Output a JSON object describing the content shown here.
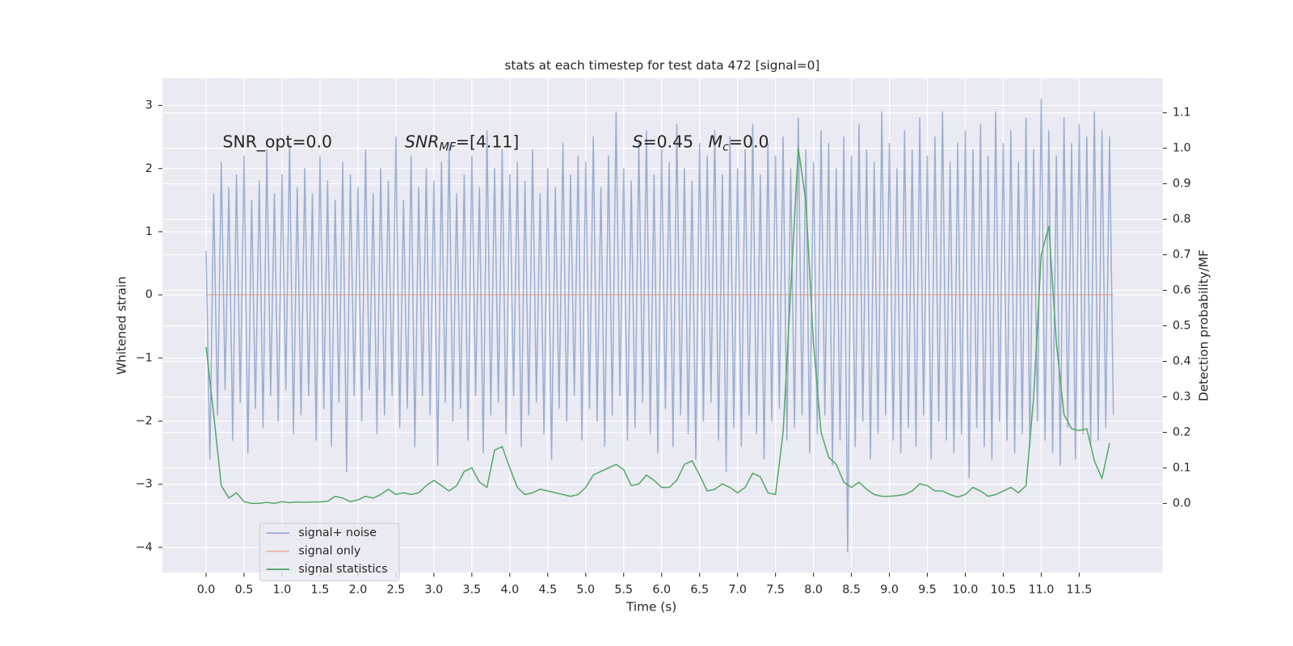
{
  "chart_data": {
    "type": "line",
    "title": "stats at each timestep for test data 472 [signal=0]",
    "xlabel": "Time (s)",
    "ylabel": "Whitened strain",
    "y2label": "Detection probability/MF",
    "annotations": [
      "SNR_opt=0.0",
      {
        "base": "SNR",
        "sub": "MF",
        "rest": "=[4.11]"
      },
      {
        "base": "S",
        "rest": "=0.45"
      },
      {
        "base": "M",
        "sub": "c",
        "rest": "=0.0"
      }
    ],
    "xlim": [
      -0.575,
      12.6
    ],
    "ylim": [
      -4.4,
      3.43
    ],
    "y2lim": [
      -0.195,
      1.197
    ],
    "xticks": [
      {
        "value": 0,
        "label": "0.0"
      },
      0.5,
      {
        "value": 1,
        "label": "1.0"
      },
      1.5,
      {
        "value": 2,
        "label": "2.0"
      },
      2.5,
      {
        "value": 3,
        "label": "3.0"
      },
      3.5,
      {
        "value": 4,
        "label": "4.0"
      },
      4.5,
      {
        "value": 5,
        "label": "5.0"
      },
      5.5,
      {
        "value": 6,
        "label": "6.0"
      },
      6.5,
      {
        "value": 7,
        "label": "7.0"
      },
      7.5,
      {
        "value": 8,
        "label": "8.0"
      },
      8.5,
      {
        "value": 9,
        "label": "9.0"
      },
      9.5,
      {
        "value": 10,
        "label": "10.0"
      },
      10.5,
      {
        "value": 11,
        "label": "11.0"
      },
      11.5
    ],
    "yticks": [
      {
        "value": -4,
        "label": "−4"
      },
      {
        "value": -3,
        "label": "−3"
      },
      {
        "value": -2,
        "label": "−2"
      },
      {
        "value": -1,
        "label": "−1"
      },
      0,
      1,
      2,
      3
    ],
    "y2ticks": [
      {
        "value": 0,
        "label": "0.0"
      },
      0.1,
      0.2,
      0.3,
      0.4,
      0.5,
      0.6,
      0.7,
      0.8,
      0.9,
      {
        "value": 1,
        "label": "1.0"
      },
      1.1
    ],
    "grid": true,
    "legend": "lower left",
    "series": [
      {
        "name": "signal+ noise",
        "color": "#4c72b0",
        "alpha": 0.5,
        "x": [
          0,
          0.05,
          0.1,
          0.15,
          0.2,
          0.25,
          0.3,
          0.35,
          0.4,
          0.45,
          0.5,
          0.55,
          0.6,
          0.65,
          0.7,
          0.75,
          0.8,
          0.85,
          0.9,
          0.95,
          1,
          1.05,
          1.1,
          1.15,
          1.2,
          1.25,
          1.3,
          1.35,
          1.4,
          1.45,
          1.5,
          1.55,
          1.6,
          1.65,
          1.7,
          1.75,
          1.8,
          1.85,
          1.9,
          1.95,
          2,
          2.05,
          2.1,
          2.15,
          2.2,
          2.25,
          2.3,
          2.35,
          2.4,
          2.45,
          2.5,
          2.55,
          2.6,
          2.65,
          2.7,
          2.75,
          2.8,
          2.85,
          2.9,
          2.95,
          3,
          3.05,
          3.1,
          3.15,
          3.2,
          3.25,
          3.3,
          3.35,
          3.4,
          3.45,
          3.5,
          3.55,
          3.6,
          3.65,
          3.7,
          3.75,
          3.8,
          3.85,
          3.9,
          3.95,
          4,
          4.05,
          4.1,
          4.15,
          4.2,
          4.25,
          4.3,
          4.35,
          4.4,
          4.45,
          4.5,
          4.55,
          4.6,
          4.65,
          4.7,
          4.75,
          4.8,
          4.85,
          4.9,
          4.95,
          5,
          5.05,
          5.1,
          5.15,
          5.2,
          5.25,
          5.3,
          5.35,
          5.4,
          5.45,
          5.5,
          5.55,
          5.6,
          5.65,
          5.7,
          5.75,
          5.8,
          5.85,
          5.9,
          5.95,
          6,
          6.05,
          6.1,
          6.15,
          6.2,
          6.25,
          6.3,
          6.35,
          6.4,
          6.45,
          6.5,
          6.55,
          6.6,
          6.65,
          6.7,
          6.75,
          6.8,
          6.85,
          6.9,
          6.95,
          7,
          7.05,
          7.1,
          7.15,
          7.2,
          7.25,
          7.3,
          7.35,
          7.4,
          7.45,
          7.5,
          7.55,
          7.6,
          7.65,
          7.7,
          7.75,
          7.8,
          7.85,
          7.9,
          7.95,
          8,
          8.05,
          8.1,
          8.15,
          8.2,
          8.25,
          8.3,
          8.35,
          8.4,
          8.45,
          8.5,
          8.55,
          8.6,
          8.65,
          8.7,
          8.75,
          8.8,
          8.85,
          8.9,
          8.95,
          9,
          9.05,
          9.1,
          9.15,
          9.2,
          9.25,
          9.3,
          9.35,
          9.4,
          9.45,
          9.5,
          9.55,
          9.6,
          9.65,
          9.7,
          9.75,
          9.8,
          9.85,
          9.9,
          9.95,
          10,
          10.05,
          10.1,
          10.15,
          10.2,
          10.25,
          10.3,
          10.35,
          10.4,
          10.45,
          10.5,
          10.55,
          10.6,
          10.65,
          10.7,
          10.75,
          10.8,
          10.85,
          10.9,
          10.95,
          11,
          11.05,
          11.1,
          11.15,
          11.2,
          11.25,
          11.3,
          11.35,
          11.4,
          11.45,
          11.5,
          11.55,
          11.6,
          11.65,
          11.7,
          11.75,
          11.8,
          11.85,
          11.9,
          11.95
        ],
        "values": [
          0.7,
          -2.6,
          1.6,
          -1.9,
          2.1,
          -1.5,
          1.7,
          -2.3,
          1.9,
          -1.7,
          2.2,
          -2.5,
          1.5,
          -1.8,
          1.8,
          -2.1,
          2.3,
          -1.6,
          1.6,
          -2.0,
          1.9,
          -1.5,
          2.4,
          -2.2,
          1.7,
          -1.9,
          2.0,
          -1.6,
          1.6,
          -2.3,
          2.2,
          -1.8,
          1.8,
          -2.4,
          1.5,
          -1.7,
          2.1,
          -2.8,
          1.9,
          -1.6,
          1.7,
          -2.0,
          2.3,
          -1.5,
          1.6,
          -2.2,
          2.0,
          -1.9,
          1.8,
          -1.6,
          2.5,
          -2.1,
          1.5,
          -1.8,
          2.2,
          -2.4,
          1.7,
          -1.6,
          2.0,
          -1.9,
          1.8,
          -2.7,
          2.1,
          -1.7,
          2.4,
          -2.0,
          1.6,
          -1.8,
          1.9,
          -2.3,
          2.2,
          -1.6,
          1.7,
          -2.5,
          2.6,
          -1.9,
          2.0,
          -1.7,
          2.3,
          -2.2,
          1.9,
          -1.6,
          2.1,
          -2.4,
          1.8,
          -1.9,
          2.3,
          -1.7,
          1.6,
          -2.2,
          2.0,
          -2.6,
          1.7,
          -1.8,
          2.4,
          -2.0,
          1.9,
          -1.6,
          2.2,
          -2.3,
          2.1,
          -1.8,
          2.5,
          -2.0,
          1.7,
          -2.4,
          2.2,
          -1.9,
          2.9,
          -1.6,
          2.0,
          -2.3,
          1.8,
          -2.1,
          2.4,
          -1.7,
          2.6,
          -2.2,
          1.9,
          -2.5,
          2.3,
          -1.8,
          2.1,
          -2.4,
          2.7,
          -1.9,
          2.0,
          -2.2,
          1.8,
          -2.6,
          2.4,
          -2.0,
          2.2,
          -1.7,
          2.6,
          -2.3,
          1.9,
          -2.8,
          2.5,
          -2.1,
          2.0,
          -2.4,
          2.3,
          -1.9,
          2.7,
          -2.2,
          1.9,
          -2.6,
          2.4,
          -2.0,
          2.2,
          -1.8,
          2.5,
          -2.3,
          2.0,
          -2.1,
          2.8,
          -1.9,
          2.3,
          -2.5,
          2.1,
          -2.2,
          2.6,
          -1.9,
          2.4,
          -2.7,
          2.0,
          -2.3,
          2.5,
          -4.07,
          2.2,
          -2.4,
          2.7,
          -2.0,
          2.3,
          -2.6,
          2.1,
          -2.2,
          2.9,
          -1.9,
          2.4,
          -2.3,
          2.0,
          -2.5,
          2.6,
          -2.1,
          2.3,
          -2.4,
          2.8,
          -1.9,
          2.2,
          -2.6,
          2.5,
          -2.0,
          2.9,
          -2.3,
          2.1,
          -2.5,
          2.4,
          -2.2,
          2.6,
          -2.9,
          2.3,
          -2.1,
          2.7,
          -2.4,
          2.2,
          -2.6,
          2.9,
          -2.0,
          2.4,
          -2.3,
          2.6,
          -2.5,
          2.1,
          -2.2,
          2.8,
          -2.4,
          2.3,
          -2.0,
          3.1,
          -2.3,
          2.6,
          -2.5,
          2.2,
          -2.7,
          2.8,
          -2.1,
          2.4,
          -2.6,
          2.7,
          -2.2,
          2.5,
          -2.4,
          2.9,
          -2.3,
          2.6,
          -2.1,
          2.5,
          -1.9
        ]
      },
      {
        "name": "signal only",
        "color": "#dd8452",
        "alpha": 0.5,
        "x": [
          0,
          11.95
        ],
        "values": [
          0,
          0
        ]
      },
      {
        "name": "signal statistics",
        "color": "#55a868",
        "alpha": 1,
        "axis": "y2",
        "x": [
          0,
          0.1,
          0.2,
          0.3,
          0.4,
          0.5,
          0.6,
          0.7,
          0.8,
          0.9,
          1,
          1.1,
          1.2,
          1.3,
          1.4,
          1.5,
          1.6,
          1.7,
          1.8,
          1.9,
          2,
          2.1,
          2.2,
          2.3,
          2.4,
          2.5,
          2.6,
          2.7,
          2.8,
          2.9,
          3,
          3.1,
          3.2,
          3.3,
          3.4,
          3.5,
          3.6,
          3.7,
          3.8,
          3.9,
          4,
          4.1,
          4.2,
          4.3,
          4.4,
          4.5,
          4.6,
          4.7,
          4.8,
          4.9,
          5,
          5.1,
          5.2,
          5.3,
          5.4,
          5.5,
          5.6,
          5.7,
          5.8,
          5.9,
          6,
          6.1,
          6.2,
          6.3,
          6.4,
          6.5,
          6.6,
          6.7,
          6.8,
          6.9,
          7,
          7.1,
          7.2,
          7.3,
          7.4,
          7.5,
          7.6,
          7.7,
          7.8,
          7.9,
          8,
          8.1,
          8.2,
          8.3,
          8.4,
          8.5,
          8.6,
          8.7,
          8.8,
          8.9,
          9,
          9.1,
          9.2,
          9.3,
          9.4,
          9.5,
          9.6,
          9.7,
          9.8,
          9.9,
          10,
          10.1,
          10.2,
          10.3,
          10.4,
          10.5,
          10.6,
          10.7,
          10.8,
          10.9,
          11,
          11.1,
          11.2,
          11.3,
          11.4,
          11.5,
          11.6,
          11.7,
          11.8,
          11.9
        ],
        "values": [
          0.44,
          0.25,
          0.05,
          0.015,
          0.03,
          0.005,
          0,
          0,
          0.003,
          0,
          0.005,
          0.002,
          0.004,
          0.003,
          0.004,
          0.004,
          0.006,
          0.02,
          0.015,
          0.005,
          0.01,
          0.02,
          0.015,
          0.025,
          0.04,
          0.025,
          0.03,
          0.025,
          0.03,
          0.05,
          0.065,
          0.05,
          0.035,
          0.05,
          0.09,
          0.1,
          0.06,
          0.045,
          0.15,
          0.16,
          0.1,
          0.045,
          0.025,
          0.03,
          0.04,
          0.035,
          0.03,
          0.025,
          0.02,
          0.025,
          0.045,
          0.08,
          0.09,
          0.1,
          0.11,
          0.095,
          0.05,
          0.055,
          0.08,
          0.065,
          0.045,
          0.045,
          0.065,
          0.11,
          0.12,
          0.08,
          0.035,
          0.04,
          0.055,
          0.045,
          0.03,
          0.045,
          0.085,
          0.075,
          0.03,
          0.025,
          0.2,
          0.6,
          1.0,
          0.85,
          0.45,
          0.2,
          0.13,
          0.11,
          0.06,
          0.045,
          0.06,
          0.04,
          0.025,
          0.02,
          0.02,
          0.022,
          0.025,
          0.035,
          0.055,
          0.05,
          0.035,
          0.035,
          0.025,
          0.018,
          0.025,
          0.045,
          0.035,
          0.02,
          0.025,
          0.035,
          0.045,
          0.03,
          0.05,
          0.3,
          0.7,
          0.78,
          0.45,
          0.25,
          0.21,
          0.205,
          0.21,
          0.12,
          0.07,
          0.17
        ]
      }
    ]
  }
}
